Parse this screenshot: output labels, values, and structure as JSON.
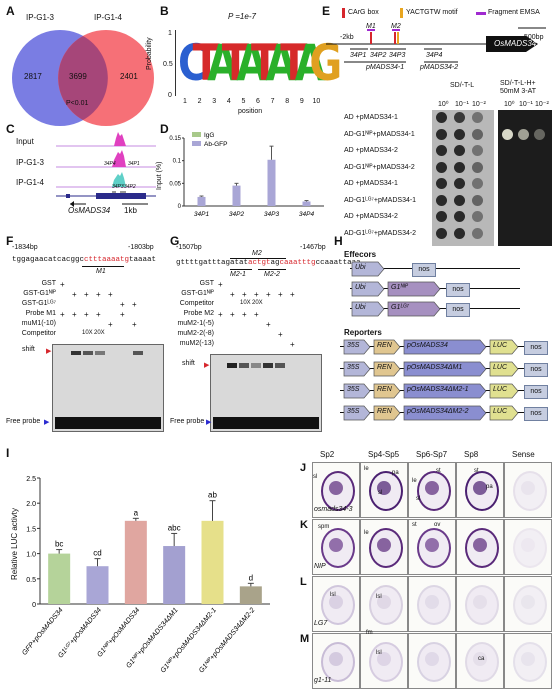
{
  "panels": {
    "A": {
      "letter": "A",
      "set1": "IP-G1-3",
      "set2": "IP-G1-4",
      "only1": "2817",
      "overlap": "3699",
      "only2": "2401",
      "pvalue": "P<0.01",
      "colors": {
        "set1": "#6b6fe0",
        "set2": "#f4575f"
      }
    },
    "B": {
      "letter": "B",
      "pvalue": "P =1e-7",
      "ylabel": "Probability",
      "xlabel": "position",
      "positions": [
        "1",
        "2",
        "3",
        "4",
        "5",
        "6",
        "7",
        "8",
        "9",
        "10"
      ],
      "yticks": [
        "0",
        "0.5",
        "1"
      ],
      "motif": [
        "C",
        "T",
        "A",
        "T",
        "A",
        "T",
        "A",
        "T",
        "A",
        "G"
      ]
    },
    "C": {
      "letter": "C",
      "tracks": [
        "Input",
        "IP-G1-3",
        "IP-G1-4"
      ],
      "peaks": [
        "34P4",
        "34P1",
        "34P3",
        "34P2"
      ],
      "gene": "OsMADS34",
      "scale": "1kb"
    },
    "D": {
      "letter": "D",
      "ylabel": "Input (%)",
      "legend": [
        "IgG",
        "Ab-GFP"
      ],
      "chart_data": {
        "type": "bar",
        "categories": [
          "34P1",
          "34P2",
          "34P3",
          "34P4"
        ],
        "series": [
          {
            "name": "IgG",
            "values": [
              0.0,
              0.0,
              0.0,
              0.0
            ]
          },
          {
            "name": "Ab-GFP",
            "values": [
              0.02,
              0.045,
              0.102,
              0.01
            ]
          }
        ],
        "errors": [
          0.002,
          0.005,
          0.03,
          0.002
        ],
        "yticks": [
          "0",
          "0.05",
          "0.1",
          "0.15"
        ],
        "ylim": [
          0,
          0.15
        ],
        "colors": [
          "#a8c98a",
          "#a9a6d6"
        ]
      }
    },
    "E": {
      "letter": "E",
      "legend": [
        "CArG box",
        "YACTGTW motif",
        "Fragment EMSA"
      ],
      "legend_colors": [
        "#d6262c",
        "#e9a620",
        "#a02ad0"
      ],
      "promoter_label": "-2kb",
      "scale": "500bp",
      "gene": "OsMADS34",
      "fragments": [
        "M1",
        "M2"
      ],
      "probes": [
        "34P1",
        "34P2",
        "34P3",
        "34P4"
      ],
      "constructs": [
        "pMADS34-1",
        "pMADS34-2"
      ],
      "media": [
        "SD/-T-L",
        "SD/-T-L-H+ 50mM 3-AT"
      ],
      "dilutions": [
        "10⁰",
        "10⁻¹",
        "10⁻²"
      ],
      "rows": [
        "AD +pMADS34-1",
        "AD-G1ᴺᴵᴾ+pMADS34-1",
        "AD +pMADS34-2",
        "AD-G1ᴺᴵᴾ+pMADS34-2",
        "AD +pMADS34-1",
        "AD-G1ᴸᴳ⁷+pMADS34-1",
        "AD +pMADS34-2",
        "AD-G1ᴸᴳ⁷+pMADS34-2"
      ]
    },
    "F": {
      "letter": "F",
      "start": "-1834bp",
      "end": "-1803bp",
      "seq_pre": "tggagaacatcacggc",
      "seq_motif": "ctttaaaatg",
      "seq_post": "taaaat",
      "fragment": "M1",
      "rows": [
        "GST",
        "GST-G1ᴺᴵᴾ",
        "GST-G1ᴸᴳ⁷",
        "Probe M1",
        "muM1(-10)",
        "Competitor"
      ],
      "competitor": [
        "10X",
        "20X"
      ],
      "shift": "shift",
      "free": "Free probe"
    },
    "G": {
      "letter": "G",
      "start": "-1507bp",
      "end": "-1467bp",
      "seq_pre": "gttttgatttagatat",
      "seq_m1": "actgt",
      "seq_mid": "ag",
      "seq_m2": "caaatttg",
      "seq_post": "ccaaattaaa",
      "fragment": "M2",
      "subfragments": [
        "M2-1",
        "M2-2"
      ],
      "rows": [
        "GST",
        "GST-G1ᴺᴵᴾ",
        "Competitor",
        "Probe M2",
        "muM2-1(-5)",
        "muM2-2(-8)",
        "muM2(-13)"
      ],
      "competitor": [
        "10X",
        "20X"
      ],
      "shift": "shift",
      "free": "Free probe"
    },
    "H": {
      "letter": "H",
      "effectors": "Effecors",
      "reporters": "Reporters",
      "promoter": "Ubi",
      "terminator": "nos",
      "eff_genes": [
        "G1ᴺᴵᴾ",
        "G1ᴸᴳ⁷"
      ],
      "rep_35s": "35S",
      "rep_ren": "REN",
      "rep_luc": "LUC",
      "rep_promoters": [
        "pOsMADS34",
        "pOsMADS34ΔM1",
        "pOsMADS34ΔM2-1",
        "pOsMADS34ΔM2-2"
      ]
    },
    "I": {
      "letter": "I",
      "ylabel": "Relative LUC activty",
      "chart_data": {
        "type": "bar",
        "categories": [
          "GFP+pOsMADS34",
          "G1ᴸᴳ⁷+pOsMADS34",
          "G1ᴺᴵᴾ+pOsMADS34",
          "G1ᴺᴵᴾ+pOsMADS34ΔM1",
          "G1ᴺᴵᴾ+pOsMADS34ΔM2-1",
          "G1ᴺᴵᴾ+pOsMADS34ΔM2-2"
        ],
        "values": [
          1.0,
          0.75,
          1.65,
          1.15,
          1.65,
          0.35
        ],
        "errors": [
          0.08,
          0.15,
          0.05,
          0.25,
          0.4,
          0.06
        ],
        "letters": [
          "bc",
          "cd",
          "a",
          "abc",
          "ab",
          "d"
        ],
        "yticks": [
          "0",
          "0.5",
          "1.0",
          "1.5",
          "2.0",
          "2.5"
        ],
        "ylim": [
          0,
          2.5
        ],
        "colors": [
          "#b5d39a",
          "#a9a6d6",
          "#e0a6a0",
          "#a3a0d0",
          "#e6e08a",
          "#a9a38a"
        ]
      }
    },
    "J": {
      "letter": "J",
      "label": "osmads34-3"
    },
    "K": {
      "letter": "K",
      "label": "NIP"
    },
    "L": {
      "letter": "L",
      "label": "LG7"
    },
    "M": {
      "letter": "M",
      "label": "g1-11"
    },
    "ish_columns": [
      "Sp2",
      "Sp4-Sp5",
      "Sp6-Sp7",
      "Sp8",
      "Sense"
    ],
    "ish_tissue": [
      "sl",
      "le",
      "pa",
      "st",
      "spm",
      "ov",
      "lsl",
      "fm",
      "ca"
    ]
  }
}
